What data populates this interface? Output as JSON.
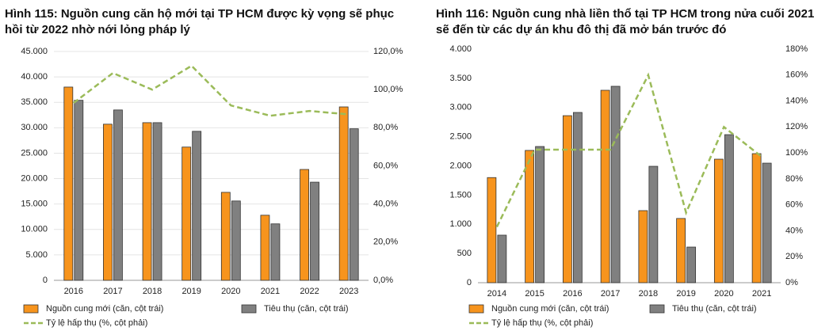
{
  "chart_data": [
    {
      "type": "bar",
      "title": "Hình 115: Nguồn cung căn hộ mới tại TP HCM được kỳ vọng sẽ phục hồi từ 2022 nhờ nới lỏng pháp lý",
      "categories": [
        "2016",
        "2017",
        "2018",
        "2019",
        "2020",
        "2021",
        "2022",
        "2023"
      ],
      "series": [
        {
          "name": "Nguồn cung mới (căn, cột trái)",
          "type": "bar",
          "color": "#f7941d",
          "values": [
            38000,
            30700,
            31000,
            26200,
            17300,
            12800,
            21800,
            34100
          ]
        },
        {
          "name": "Tiêu thụ (căn, cột trái)",
          "type": "bar",
          "color": "#808080",
          "values": [
            35400,
            33500,
            31000,
            29300,
            15600,
            11100,
            19300,
            29800
          ]
        },
        {
          "name": "Tỷ lệ hấp thụ (%, cột phải)",
          "type": "line",
          "axis": "y2",
          "color": "#9bbb59",
          "values": [
            93,
            108.7,
            100,
            112.5,
            91.7,
            86.3,
            88.8,
            87
          ]
        }
      ],
      "ylim": [
        0,
        45000
      ],
      "yticks": [
        0,
        {
          "value": 5000,
          "label": "5.000"
        },
        {
          "value": 10000,
          "label": "10.000"
        },
        {
          "value": 15000,
          "label": "15.000"
        },
        {
          "value": 20000,
          "label": "20.000"
        },
        {
          "value": 25000,
          "label": "25.000"
        },
        {
          "value": 30000,
          "label": "30.000"
        },
        {
          "value": 35000,
          "label": "35.000"
        },
        {
          "value": 40000,
          "label": "40.000"
        },
        {
          "value": 45000,
          "label": "45.000"
        }
      ],
      "y2lim": [
        0,
        120
      ],
      "y2ticks": [
        {
          "value": 0,
          "label": "0,0%"
        },
        {
          "value": 20,
          "label": "20,0%"
        },
        {
          "value": 40,
          "label": "40,0%"
        },
        {
          "value": 60,
          "label": "60,0%"
        },
        {
          "value": 80,
          "label": "80,0%"
        },
        {
          "value": 100,
          "label": "100,0%"
        },
        {
          "value": 120,
          "label": "120,0%"
        }
      ],
      "grid": true
    },
    {
      "type": "bar",
      "title": "Hình 116: Nguồn cung nhà liền thổ tại TP HCM trong nửa cuối 2021 sẽ đến từ các dự án khu đô thị đã mở bán trước đó",
      "categories": [
        "2014",
        "2015",
        "2016",
        "2017",
        "2018",
        "2019",
        "2020",
        "2021"
      ],
      "series": [
        {
          "name": "Nguồn cung mới (căn, cột trái)",
          "type": "bar",
          "color": "#f7941d",
          "values": [
            1800,
            2265,
            2860,
            3295,
            1234,
            1100,
            2115,
            2210
          ]
        },
        {
          "name": "Tiêu thụ (căn, cột trái)",
          "type": "bar",
          "color": "#808080",
          "values": [
            814,
            2332,
            2915,
            3363,
            1993,
            610,
            2535,
            2047
          ]
        },
        {
          "name": "Tỷ lệ hấp thụ (%, cột phải)",
          "type": "line",
          "axis": "y2",
          "color": "#9bbb59",
          "values": [
            43,
            102.5,
            102.5,
            102.5,
            160,
            54,
            120,
            97
          ]
        }
      ],
      "ylim": [
        0,
        4000
      ],
      "yticks": [
        0,
        {
          "value": 500,
          "label": "500"
        },
        {
          "value": 1000,
          "label": "1.000"
        },
        {
          "value": 1500,
          "label": "1.500"
        },
        {
          "value": 2000,
          "label": "2.000"
        },
        {
          "value": 2500,
          "label": "2.500"
        },
        {
          "value": 3000,
          "label": "3.000"
        },
        {
          "value": 3500,
          "label": "3.500"
        },
        {
          "value": 4000,
          "label": "4.000"
        }
      ],
      "y2lim": [
        0,
        180
      ],
      "y2ticks": [
        {
          "value": 0,
          "label": "0%"
        },
        {
          "value": 20,
          "label": "20%"
        },
        {
          "value": 40,
          "label": "40%"
        },
        {
          "value": 60,
          "label": "60%"
        },
        {
          "value": 80,
          "label": "80%"
        },
        {
          "value": 100,
          "label": "100%"
        },
        {
          "value": 120,
          "label": "120%"
        },
        {
          "value": 140,
          "label": "140%"
        },
        {
          "value": 160,
          "label": "160%"
        },
        {
          "value": 180,
          "label": "180%"
        }
      ],
      "grid": false
    }
  ]
}
